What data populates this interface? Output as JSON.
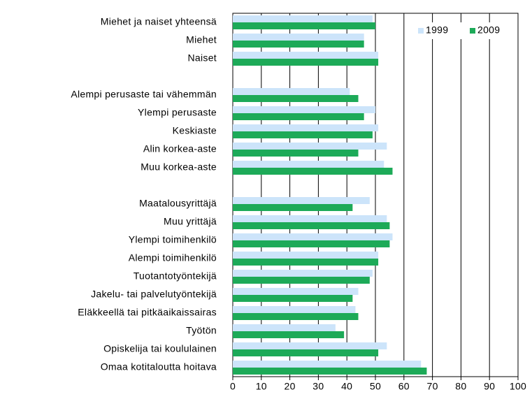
{
  "chart_data": {
    "type": "hbar",
    "categories": [
      "Miehet ja naiset yhteensä",
      "Miehet",
      "Naiset",
      null,
      "Alempi perusaste tai vähemmän",
      "Ylempi perusaste",
      "Keskiaste",
      "Alin korkea-aste",
      "Muu korkea-aste",
      null,
      "Maatalousyrittäjä",
      "Muu yrittäjä",
      "Ylempi toimihenkilö",
      "Alempi toimihenkilö",
      "Tuotantotyöntekijä",
      "Jakelu- tai palvelutyöntekijä",
      "Eläkkeellä tai pitkäaikaissairas",
      "Työtön",
      "Opiskelija tai koululainen",
      "Omaa kotitaloutta hoitava"
    ],
    "series": [
      {
        "name": "1999",
        "color": "#cce4fa",
        "values": [
          49,
          46,
          51,
          null,
          41,
          50,
          51,
          54,
          53,
          null,
          48,
          54,
          56,
          51,
          49,
          44,
          43,
          36,
          54,
          66
        ]
      },
      {
        "name": "2009",
        "color": "#1daa58",
        "values": [
          50,
          46,
          51,
          null,
          44,
          46,
          49,
          44,
          56,
          null,
          42,
          55,
          55,
          51,
          48,
          42,
          44,
          39,
          51,
          68
        ]
      }
    ],
    "xlim": [
      0,
      100
    ],
    "xticks": [
      0,
      10,
      20,
      30,
      40,
      50,
      60,
      70,
      80,
      90,
      100
    ],
    "grid": true,
    "legend": "upper right"
  }
}
